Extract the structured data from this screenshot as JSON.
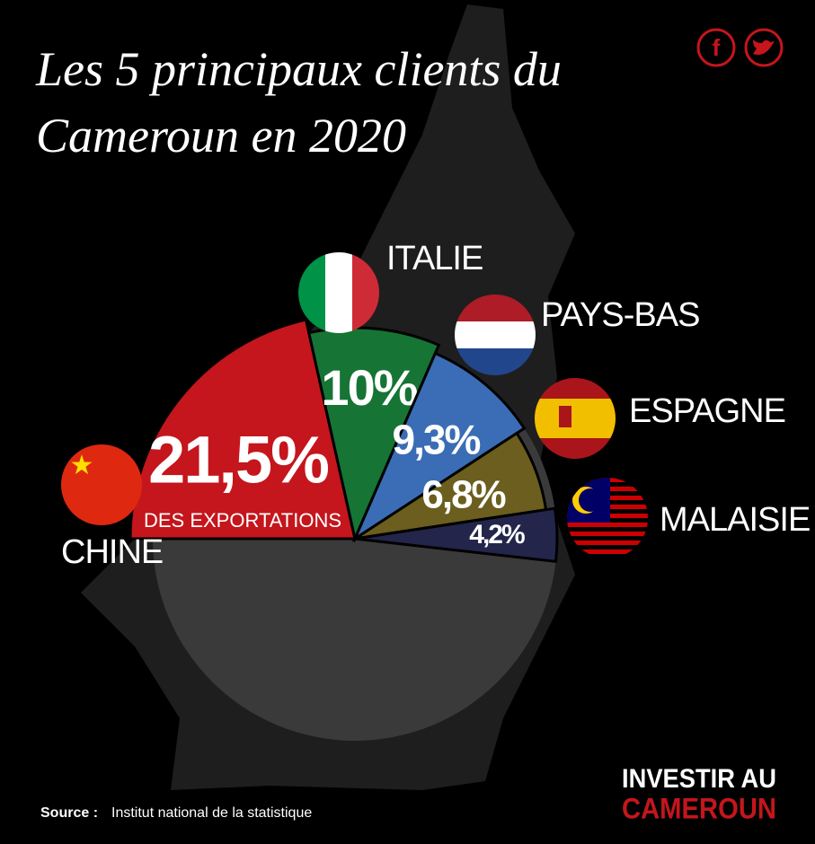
{
  "chart_data": {
    "type": "pie",
    "title": "Les 5 principaux clients du Cameroun en 2020",
    "annotation": "DES EXPORTATIONS",
    "categories": [
      "CHINE",
      "ITALIE",
      "PAYS-BAS",
      "ESPAGNE",
      "MALAISIE"
    ],
    "values": [
      21.5,
      10,
      9.3,
      6.8,
      4.2
    ],
    "value_labels": [
      "21,5%",
      "10%",
      "9,3%",
      "6,8%",
      "4,2%"
    ],
    "colors": [
      "#c4161c",
      "#167435",
      "#3a6db5",
      "#6b5e1e",
      "#23254a"
    ]
  },
  "source": {
    "label": "Source :",
    "text": "Institut national de la statistique"
  },
  "logo": {
    "line1": "INVESTIR AU",
    "line2": "CAMEROUN"
  }
}
